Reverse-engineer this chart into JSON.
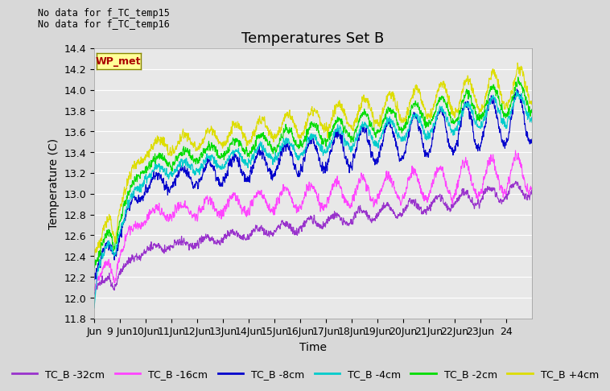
{
  "title": "Temperatures Set B",
  "xlabel": "Time",
  "ylabel": "Temperature (C)",
  "ylim": [
    11.8,
    14.4
  ],
  "legend_entries": [
    {
      "label": "TC_B -32cm",
      "color": "#9933cc"
    },
    {
      "label": "TC_B -16cm",
      "color": "#ff44ff"
    },
    {
      "label": "TC_B -8cm",
      "color": "#0000cc"
    },
    {
      "label": "TC_B -4cm",
      "color": "#00cccc"
    },
    {
      "label": "TC_B -2cm",
      "color": "#00dd00"
    },
    {
      "label": "TC_B +4cm",
      "color": "#dddd00"
    }
  ],
  "annotation_lines": [
    "No data for f_TC_temp15",
    "No data for f_TC_temp16"
  ],
  "wp_met_box_color": "#ffff99",
  "wp_met_text_color": "#aa0000",
  "background_color": "#d8d8d8",
  "plot_bg_color": "#e8e8e8",
  "grid_color": "#ffffff",
  "yticks": [
    11.8,
    12.0,
    12.2,
    12.4,
    12.6,
    12.8,
    13.0,
    13.2,
    13.4,
    13.6,
    13.8,
    14.0,
    14.2,
    14.4
  ],
  "xtick_labels": [
    "Jun",
    "9 Jun",
    "10Jun",
    "11Jun",
    "12Jun",
    "13Jun",
    "14Jun",
    "15Jun",
    "16Jun",
    "17Jun",
    "18Jun",
    "19Jun",
    "20Jun",
    "21Jun",
    "22Jun",
    "23Jun",
    "24"
  ],
  "title_fontsize": 13,
  "axis_fontsize": 10,
  "tick_fontsize": 9,
  "legend_fontsize": 9,
  "n_days": 17
}
